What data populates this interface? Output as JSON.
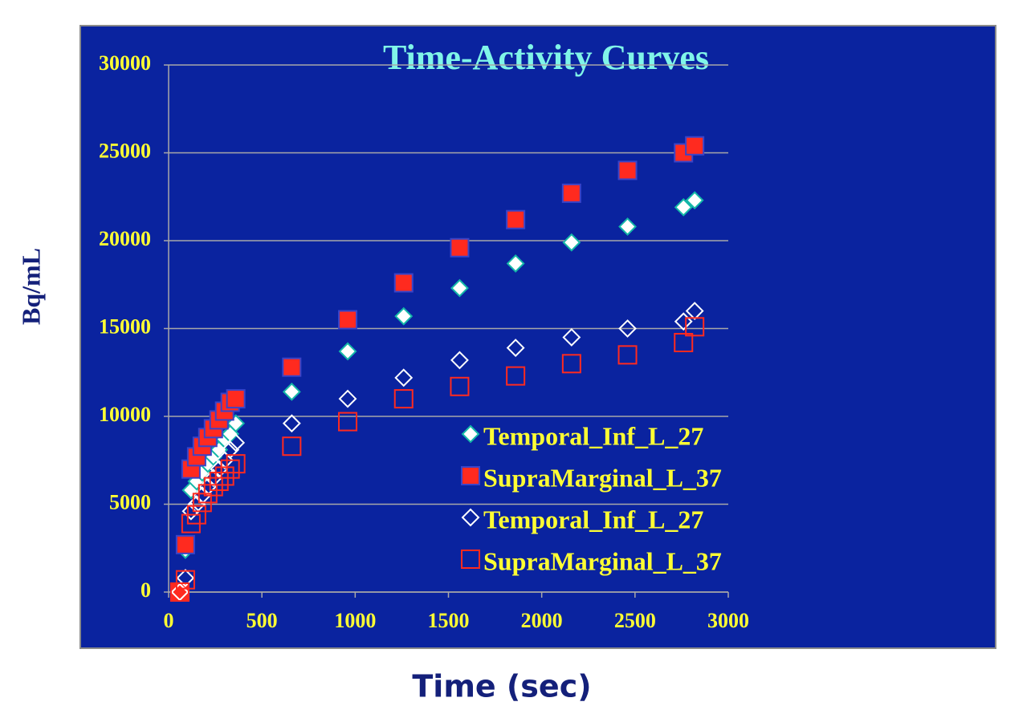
{
  "chart_data": {
    "type": "scatter",
    "title": "Time-Activity Curves",
    "x_label": "Time (sec)",
    "y_label": "Bq/mL",
    "xlim": [
      0,
      3000
    ],
    "xticks": [
      0,
      500,
      1000,
      1500,
      2000,
      2500,
      3000
    ],
    "ylim": [
      0,
      30000
    ],
    "yticks": [
      0,
      5000,
      10000,
      15000,
      20000,
      25000,
      30000
    ],
    "grid": true,
    "x": [
      60,
      90,
      120,
      150,
      180,
      210,
      240,
      270,
      300,
      330,
      360,
      660,
      960,
      1260,
      1560,
      1860,
      2160,
      2460,
      2760,
      2820
    ],
    "series": [
      {
        "name": "Temporal_Inf_L_27",
        "color": "#ffffff",
        "marker": "diamond",
        "filled": true,
        "values": [
          0,
          2400,
          5800,
          6300,
          6800,
          7300,
          7700,
          8100,
          8700,
          9000,
          9600,
          11400,
          13700,
          15700,
          17300,
          18700,
          19900,
          20800,
          21900,
          22300
        ]
      },
      {
        "name": "SupraMarginal_L_37",
        "color": "#ff2a1f",
        "marker": "square",
        "filled": true,
        "values": [
          0,
          2700,
          7000,
          7700,
          8300,
          8800,
          9300,
          9800,
          10300,
          10800,
          11000,
          12800,
          15500,
          17600,
          19600,
          21200,
          22700,
          24000,
          25000,
          25400
        ]
      },
      {
        "name": "Temporal_Inf_L_27",
        "color": "#ffffff",
        "marker": "diamond",
        "filled": false,
        "values": [
          0,
          800,
          4600,
          5000,
          5500,
          6000,
          6500,
          7000,
          7500,
          8100,
          8500,
          9600,
          11000,
          12200,
          13200,
          13900,
          14500,
          15000,
          15400,
          16000
        ]
      },
      {
        "name": "SupraMarginal_L_37",
        "color": "#ff2a1f",
        "marker": "square",
        "filled": false,
        "values": [
          0,
          700,
          3900,
          4400,
          5100,
          5600,
          6000,
          6300,
          6600,
          7000,
          7300,
          8300,
          9700,
          11000,
          11700,
          12300,
          13000,
          13500,
          14200,
          15100
        ]
      }
    ]
  }
}
